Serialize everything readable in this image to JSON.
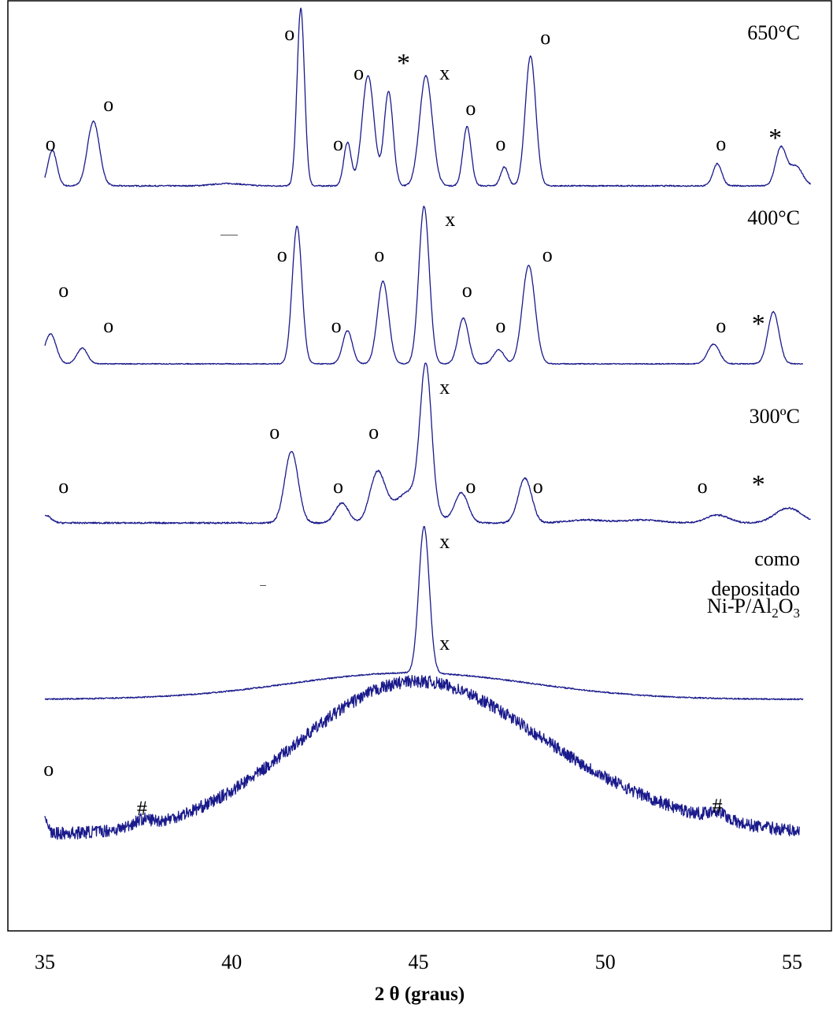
{
  "chart_data": {
    "type": "line",
    "xlabel": "2 θ (graus)",
    "xlim": [
      35,
      55.5
    ],
    "x_ticks": [
      "35",
      "40",
      "45",
      "50",
      "55"
    ],
    "x_tick_values": [
      35,
      40,
      45,
      50,
      55
    ],
    "y_axis": "none (stacked offset traces, arbitrary intensity)",
    "series": [
      {
        "name": "650°C",
        "baseline": 0,
        "noise": 0.8,
        "peaks": [
          {
            "x": 35.2,
            "h": 45,
            "w": 0.12
          },
          {
            "x": 36.3,
            "h": 82,
            "w": 0.16
          },
          {
            "x": 39.9,
            "h": 3,
            "w": 0.4
          },
          {
            "x": 41.85,
            "h": 225,
            "w": 0.1
          },
          {
            "x": 43.1,
            "h": 55,
            "w": 0.1
          },
          {
            "x": 43.65,
            "h": 140,
            "w": 0.16
          },
          {
            "x": 44.2,
            "h": 120,
            "w": 0.12
          },
          {
            "x": 45.2,
            "h": 140,
            "w": 0.17
          },
          {
            "x": 46.3,
            "h": 75,
            "w": 0.11
          },
          {
            "x": 47.3,
            "h": 24,
            "w": 0.1
          },
          {
            "x": 48.0,
            "h": 165,
            "w": 0.14
          },
          {
            "x": 53.0,
            "h": 28,
            "w": 0.12
          },
          {
            "x": 54.7,
            "h": 48,
            "w": 0.14
          },
          {
            "x": 55.1,
            "h": 25,
            "w": 0.18
          }
        ],
        "markers": [
          {
            "text": "o",
            "x": 35.15,
            "h": 45
          },
          {
            "text": "o",
            "x": 36.7,
            "h": 95
          },
          {
            "text": "o",
            "x": 41.55,
            "h": 185
          },
          {
            "text": "o",
            "x": 42.85,
            "h": 45
          },
          {
            "text": "o",
            "x": 43.4,
            "h": 135
          },
          {
            "text": "*",
            "x": 44.6,
            "h": 145
          },
          {
            "text": "x",
            "x": 45.7,
            "h": 135
          },
          {
            "text": "o",
            "x": 46.4,
            "h": 90
          },
          {
            "text": "o",
            "x": 47.2,
            "h": 45
          },
          {
            "text": "o",
            "x": 48.4,
            "h": 180
          },
          {
            "text": "o",
            "x": 53.1,
            "h": 45
          },
          {
            "text": "*",
            "x": 54.55,
            "h": 50
          }
        ],
        "label_lines": [
          "650°C"
        ]
      },
      {
        "name": "400°C",
        "baseline": 0,
        "noise": 0.6,
        "peaks": [
          {
            "x": 35.15,
            "h": 38,
            "w": 0.15
          },
          {
            "x": 36.0,
            "h": 20,
            "w": 0.14
          },
          {
            "x": 41.75,
            "h": 175,
            "w": 0.13
          },
          {
            "x": 43.1,
            "h": 42,
            "w": 0.13
          },
          {
            "x": 44.05,
            "h": 105,
            "w": 0.15
          },
          {
            "x": 45.15,
            "h": 200,
            "w": 0.14
          },
          {
            "x": 46.2,
            "h": 58,
            "w": 0.14
          },
          {
            "x": 47.15,
            "h": 18,
            "w": 0.14
          },
          {
            "x": 47.95,
            "h": 125,
            "w": 0.17
          },
          {
            "x": 52.9,
            "h": 25,
            "w": 0.16
          },
          {
            "x": 54.5,
            "h": 66,
            "w": 0.15
          }
        ],
        "markers": [
          {
            "text": "o",
            "x": 35.5,
            "h": 85
          },
          {
            "text": "o",
            "x": 36.7,
            "h": 40
          },
          {
            "text": "o",
            "x": 41.35,
            "h": 130
          },
          {
            "text": "o",
            "x": 42.8,
            "h": 40
          },
          {
            "text": "o",
            "x": 43.95,
            "h": 130
          },
          {
            "text": "x",
            "x": 45.85,
            "h": 175
          },
          {
            "text": "o",
            "x": 46.3,
            "h": 85
          },
          {
            "text": "o",
            "x": 47.2,
            "h": 40
          },
          {
            "text": "o",
            "x": 48.45,
            "h": 130
          },
          {
            "text": "o",
            "x": 53.1,
            "h": 40
          },
          {
            "text": "*",
            "x": 54.1,
            "h": 40
          }
        ],
        "label_lines": [
          "400°C"
        ]
      },
      {
        "name": "300ºC",
        "baseline": 0,
        "noise": 0.8,
        "peaks": [
          {
            "x": 35.0,
            "h": 8,
            "w": 0.15
          },
          {
            "x": 41.6,
            "h": 72,
            "w": 0.18
          },
          {
            "x": 42.95,
            "h": 20,
            "w": 0.18
          },
          {
            "x": 43.9,
            "h": 48,
            "w": 0.2
          },
          {
            "x": 44.8,
            "h": 32,
            "w": 0.45
          },
          {
            "x": 45.2,
            "h": 140,
            "w": 0.15
          },
          {
            "x": 46.15,
            "h": 30,
            "w": 0.18
          },
          {
            "x": 47.85,
            "h": 45,
            "w": 0.18
          },
          {
            "x": 53.0,
            "h": 8,
            "w": 0.3
          },
          {
            "x": 54.9,
            "h": 15,
            "w": 0.35
          },
          {
            "x": 49.5,
            "h": 3,
            "w": 0.5
          },
          {
            "x": 51.0,
            "h": 3,
            "w": 0.5
          }
        ],
        "markers": [
          {
            "text": "o",
            "x": 35.5,
            "h": 30
          },
          {
            "text": "o",
            "x": 41.15,
            "h": 85
          },
          {
            "text": "o",
            "x": 42.85,
            "h": 30
          },
          {
            "text": "o",
            "x": 43.8,
            "h": 85
          },
          {
            "text": "x",
            "x": 45.7,
            "h": 130
          },
          {
            "text": "o",
            "x": 46.4,
            "h": 30
          },
          {
            "text": "o",
            "x": 48.2,
            "h": 30
          },
          {
            "text": "o",
            "x": 52.6,
            "h": 30
          },
          {
            "text": "*",
            "x": 54.1,
            "h": 30
          }
        ],
        "label_lines": [
          "300ºC"
        ]
      },
      {
        "name": "como depositado",
        "baseline": 0,
        "noise": 0.7,
        "peaks": [
          {
            "x": 44.8,
            "h": 28,
            "w": 3.2
          },
          {
            "x": 45.15,
            "h": 155,
            "w": 0.14
          }
        ],
        "markers": [
          {
            "text": "x",
            "x": 45.7,
            "h": 160
          }
        ],
        "label_lines": [
          "como",
          "depositado"
        ]
      },
      {
        "name": "Ni-P/Al2O3",
        "baseline": 0,
        "noise": 8,
        "peaks": [
          {
            "x": 35.0,
            "h": 25,
            "w": 0.07
          },
          {
            "x": 37.6,
            "h": 8,
            "w": 0.25
          },
          {
            "x": 44.6,
            "h": 180,
            "w": 3.0
          },
          {
            "x": 49.0,
            "h": 40,
            "w": 3.0
          },
          {
            "x": 53.0,
            "h": 10,
            "w": 0.25
          }
        ],
        "markers": [
          {
            "text": "o",
            "x": 35.1,
            "h": 75
          },
          {
            "text": "#",
            "x": 37.6,
            "h": 25
          },
          {
            "text": "x",
            "x": 45.7,
            "h": 235
          },
          {
            "text": "#",
            "x": 53.0,
            "h": 28
          }
        ],
        "label_lines": [
          "Ni-P/Al",
          "2",
          "O",
          "3"
        ]
      }
    ],
    "colors": {
      "trace": "#1a1a8c",
      "frame": "#000000",
      "text": "#000000"
    }
  }
}
